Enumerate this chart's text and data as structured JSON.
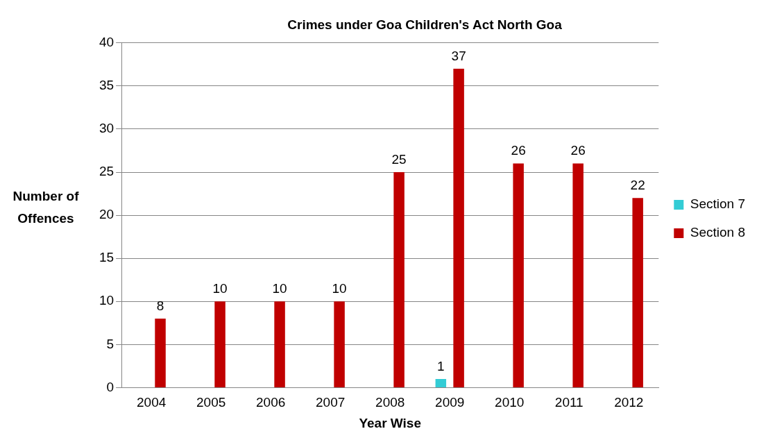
{
  "chart_data": {
    "type": "bar",
    "title": "Crimes under Goa Children's Act North Goa",
    "xlabel": "Year Wise",
    "ylabel": "Number of Offences",
    "categories": [
      "2004",
      "2005",
      "2006",
      "2007",
      "2008",
      "2009",
      "2010",
      "2011",
      "2012"
    ],
    "series": [
      {
        "name": "Section 7",
        "color": "#33ccd5",
        "values": [
          null,
          null,
          null,
          null,
          null,
          1,
          null,
          null,
          null
        ]
      },
      {
        "name": "Section 8",
        "color": "#c00000",
        "values": [
          8,
          10,
          10,
          10,
          25,
          37,
          26,
          26,
          22
        ]
      }
    ],
    "ylim": [
      0,
      40
    ],
    "yticks": [
      0,
      5,
      10,
      15,
      20,
      25,
      30,
      35,
      40
    ],
    "grid": "y",
    "legend": "right",
    "data_labels": true
  }
}
